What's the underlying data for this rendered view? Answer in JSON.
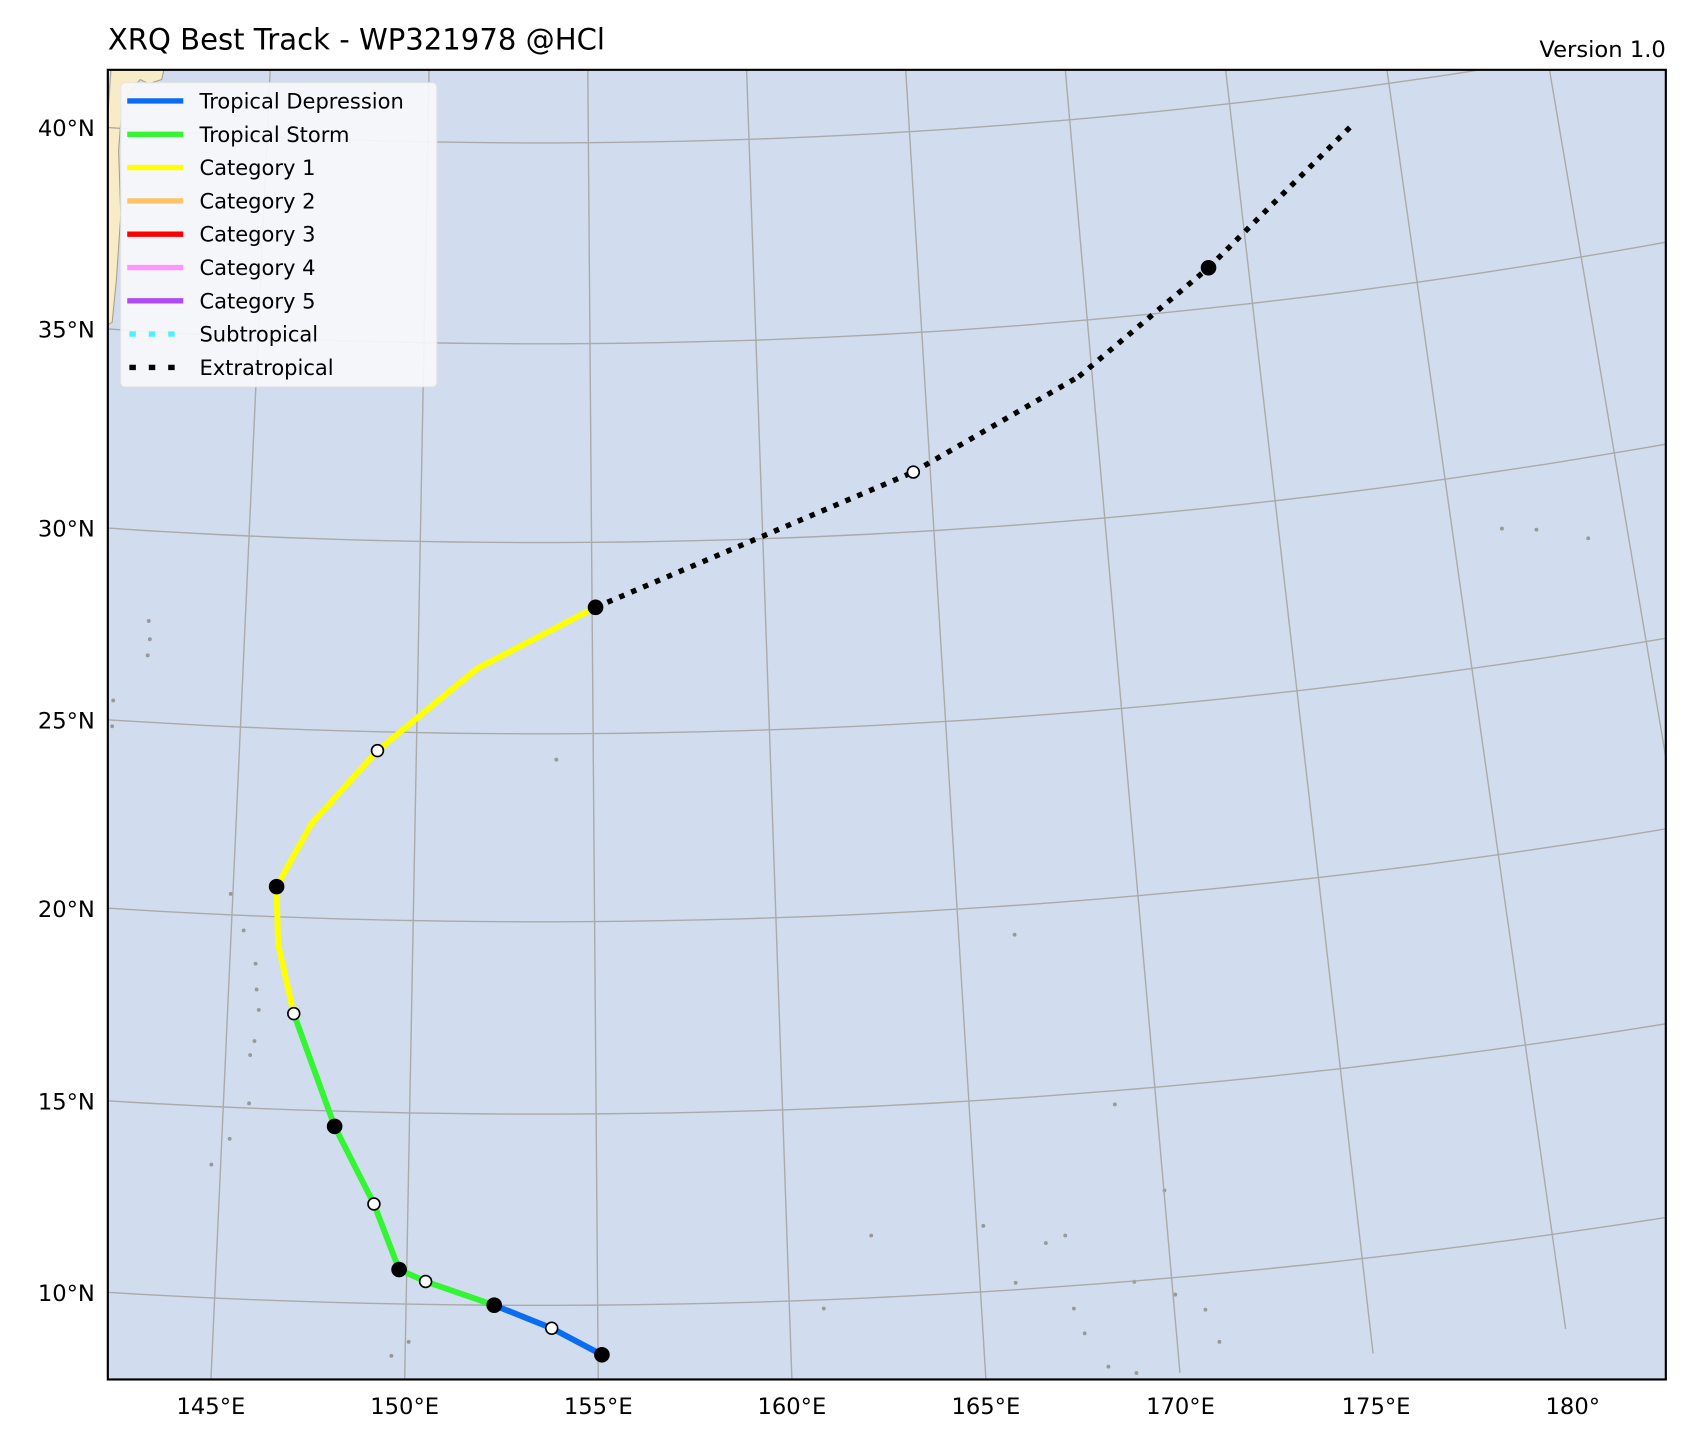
{
  "title": "XRQ Best Track - WP321978  @HCl",
  "version": "Version 1.0",
  "colors": {
    "ocean": "#d1ddee",
    "land": "#f8ecc8",
    "grid": "#aaaaaa",
    "TD": "#0a6cf0",
    "TS": "#33f533",
    "C1": "#ffff00",
    "C2": "#ffc466",
    "C3": "#ff0000",
    "C4": "#ff96ff",
    "C5": "#b04af5",
    "SS": "#4ef0ff",
    "EX": "#000000"
  },
  "legend": [
    {
      "key": "TD",
      "label": "Tropical Depression",
      "style": "solid"
    },
    {
      "key": "TS",
      "label": "Tropical Storm",
      "style": "solid"
    },
    {
      "key": "C1",
      "label": "Category 1",
      "style": "solid"
    },
    {
      "key": "C2",
      "label": "Category 2",
      "style": "solid"
    },
    {
      "key": "C3",
      "label": "Category 3",
      "style": "solid"
    },
    {
      "key": "C4",
      "label": "Category 4",
      "style": "solid"
    },
    {
      "key": "C5",
      "label": "Category 5",
      "style": "solid"
    },
    {
      "key": "SS",
      "label": "Subtropical",
      "style": "dotted"
    },
    {
      "key": "EX",
      "label": "Extratropical",
      "style": "dotted"
    }
  ],
  "chart_data": {
    "type": "map-track",
    "title": "XRQ Best Track - WP321978  @HCl",
    "lon_ticks": [
      145,
      150,
      155,
      160,
      165,
      170,
      175,
      180
    ],
    "lon_labels": [
      "145°E",
      "150°E",
      "155°E",
      "160°E",
      "165°E",
      "170°E",
      "175°E",
      "180°"
    ],
    "lat_ticks": [
      10,
      15,
      20,
      25,
      30,
      35,
      40
    ],
    "lat_labels": [
      "10°N",
      "15°N",
      "20°N",
      "25°N",
      "30°N",
      "35°N",
      "40°N"
    ],
    "track": [
      {
        "lon": 155.1,
        "lat": 8.7,
        "cat": "TD",
        "marker": "black"
      },
      {
        "lon": 153.8,
        "lat": 9.4,
        "cat": "TD",
        "marker": "white"
      },
      {
        "lon": 152.3,
        "lat": 10.0,
        "cat": "TS",
        "marker": "black"
      },
      {
        "lon": 150.5,
        "lat": 10.6,
        "cat": "TS",
        "marker": "white"
      },
      {
        "lon": 149.8,
        "lat": 10.9,
        "cat": "TS",
        "marker": "black"
      },
      {
        "lon": 149.1,
        "lat": 12.6,
        "cat": "TS",
        "marker": "white"
      },
      {
        "lon": 148.0,
        "lat": 14.6,
        "cat": "TS",
        "marker": "black"
      },
      {
        "lon": 146.8,
        "lat": 17.5,
        "cat": "C1",
        "marker": "white"
      },
      {
        "lon": 146.3,
        "lat": 19.3,
        "cat": "C1",
        "marker": "none"
      },
      {
        "lon": 146.2,
        "lat": 20.8,
        "cat": "C1",
        "marker": "black"
      },
      {
        "lon": 147.1,
        "lat": 22.5,
        "cat": "C1",
        "marker": "none"
      },
      {
        "lon": 148.9,
        "lat": 24.5,
        "cat": "C1",
        "marker": "white"
      },
      {
        "lon": 151.7,
        "lat": 26.7,
        "cat": "C1",
        "marker": "none"
      },
      {
        "lon": 155.1,
        "lat": 28.3,
        "cat": "EX",
        "marker": "black"
      },
      {
        "lon": 164.5,
        "lat": 31.5,
        "cat": "EX",
        "marker": "white"
      },
      {
        "lon": 169.6,
        "lat": 33.6,
        "cat": "EX",
        "marker": "none"
      },
      {
        "lon": 173.8,
        "lat": 36.0,
        "cat": "EX",
        "marker": "black"
      },
      {
        "lon": 178.7,
        "lat": 39.1,
        "cat": "EX",
        "marker": "none"
      }
    ]
  }
}
